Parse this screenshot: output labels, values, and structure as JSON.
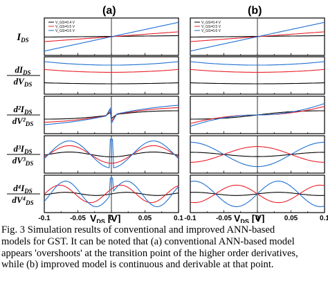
{
  "figure": {
    "panel_labels": [
      "(a)",
      "(b)"
    ],
    "row_labels": [
      {
        "num": "I",
        "num_sub": "DS",
        "den": "",
        "den_sub": ""
      },
      {
        "num": "dI",
        "num_sub": "DS",
        "den": "dV",
        "den_sub": "DS"
      },
      {
        "num": "d²I",
        "num_sub": "DS",
        "den": "dV²",
        "den_sub": "DS"
      },
      {
        "num": "d³I",
        "num_sub": "DS",
        "den": "dV³",
        "den_sub": "DS"
      },
      {
        "num": "d⁴I",
        "num_sub": "DS",
        "den": "dV⁴",
        "den_sub": "DS"
      }
    ],
    "x_ticks": [
      "-0.1",
      "-0.05",
      "0",
      "0.05",
      "0.1"
    ],
    "xlabel_main": "V",
    "xlabel_sub": "DS",
    "xlabel_unit": " [V]",
    "legend": [
      "V_GS=0.4 V",
      "V_GS=0.5 V",
      "V_GS=0.6 V"
    ],
    "colors": {
      "vgs_04": "#000000",
      "vgs_05": "#e8202a",
      "vgs_06": "#1f6fd1"
    }
  },
  "chart_data": {
    "type": "line",
    "x_range": [
      -0.1,
      0.1
    ],
    "x_ticks": [
      -0.1,
      -0.05,
      0,
      0.05,
      0.1
    ],
    "series": [
      {
        "name": "V_GS=0.4 V"
      },
      {
        "name": "V_GS=0.5 V"
      },
      {
        "name": "V_GS=0.6 V"
      }
    ],
    "panels": [
      "(a)",
      "(b)"
    ],
    "rows": [
      "I_DS",
      "dI_DS/dV_DS",
      "d2I_DS/dV2_DS",
      "d3I_DS/dV3_DS",
      "d4I_DS/dV4_DS"
    ]
  },
  "caption": {
    "lines": [
      "Fig. 3 Simulation results of conventional and improved ANN-based",
      "models for GST. It can be noted that (a) conventional ANN-based model",
      "appears 'overshoots' at the transition point of the higher order derivatives,",
      "while (b) improved model is continuous and derivable at that point."
    ]
  }
}
